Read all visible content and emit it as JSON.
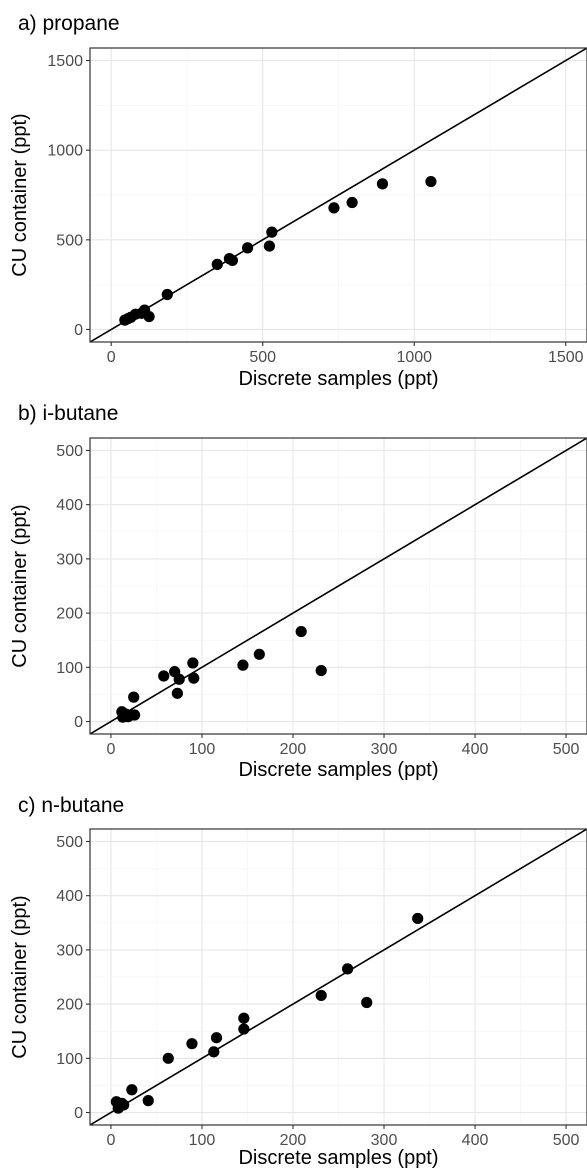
{
  "colors": {
    "point": "#000000",
    "line": "#000000",
    "grid": "#e6e6e6",
    "tick_text": "#4d4d4d"
  },
  "chart_data": [
    {
      "type": "scatter",
      "title": "a) propane",
      "xlabel": "Discrete samples (ppt)",
      "ylabel": "CU container (ppt)",
      "xlim": [
        -70,
        1570
      ],
      "ylim": [
        -70,
        1570
      ],
      "xticks": [
        0,
        500,
        1000,
        1500
      ],
      "yticks": [
        0,
        500,
        1000,
        1500
      ],
      "reference_line": "1:1",
      "grid": true,
      "points": [
        {
          "x": 45,
          "y": 52
        },
        {
          "x": 55,
          "y": 60
        },
        {
          "x": 65,
          "y": 68
        },
        {
          "x": 80,
          "y": 85
        },
        {
          "x": 100,
          "y": 90
        },
        {
          "x": 110,
          "y": 108
        },
        {
          "x": 125,
          "y": 72
        },
        {
          "x": 185,
          "y": 195
        },
        {
          "x": 350,
          "y": 363
        },
        {
          "x": 390,
          "y": 395
        },
        {
          "x": 400,
          "y": 385
        },
        {
          "x": 450,
          "y": 455
        },
        {
          "x": 522,
          "y": 465
        },
        {
          "x": 530,
          "y": 543
        },
        {
          "x": 735,
          "y": 678
        },
        {
          "x": 795,
          "y": 708
        },
        {
          "x": 895,
          "y": 812
        },
        {
          "x": 1055,
          "y": 825
        }
      ]
    },
    {
      "type": "scatter",
      "title": "b) i-butane",
      "xlabel": "Discrete samples (ppt)",
      "ylabel": "CU container (ppt)",
      "xlim": [
        -23,
        523
      ],
      "ylim": [
        -23,
        523
      ],
      "xticks": [
        0,
        100,
        200,
        300,
        400,
        500
      ],
      "yticks": [
        0,
        100,
        200,
        300,
        400,
        500
      ],
      "reference_line": "1:1",
      "grid": true,
      "points": [
        {
          "x": 12,
          "y": 18
        },
        {
          "x": 13,
          "y": 8
        },
        {
          "x": 16,
          "y": 14
        },
        {
          "x": 19,
          "y": 9
        },
        {
          "x": 22,
          "y": 12
        },
        {
          "x": 25,
          "y": 45
        },
        {
          "x": 26,
          "y": 12
        },
        {
          "x": 58,
          "y": 84
        },
        {
          "x": 70,
          "y": 92
        },
        {
          "x": 73,
          "y": 52
        },
        {
          "x": 75,
          "y": 78
        },
        {
          "x": 90,
          "y": 108
        },
        {
          "x": 91,
          "y": 80
        },
        {
          "x": 145,
          "y": 104
        },
        {
          "x": 163,
          "y": 124
        },
        {
          "x": 209,
          "y": 166
        },
        {
          "x": 231,
          "y": 94
        }
      ]
    },
    {
      "type": "scatter",
      "title": "c) n-butane",
      "xlabel": "Discrete samples (ppt)",
      "ylabel": "CU container (ppt)",
      "xlim": [
        -23,
        523
      ],
      "ylim": [
        -23,
        523
      ],
      "xticks": [
        0,
        100,
        200,
        300,
        400,
        500
      ],
      "yticks": [
        0,
        100,
        200,
        300,
        400,
        500
      ],
      "reference_line": "1:1",
      "grid": true,
      "points": [
        {
          "x": 6,
          "y": 20
        },
        {
          "x": 8,
          "y": 8
        },
        {
          "x": 10,
          "y": 12
        },
        {
          "x": 12,
          "y": 17
        },
        {
          "x": 14,
          "y": 14
        },
        {
          "x": 23,
          "y": 42
        },
        {
          "x": 41,
          "y": 22
        },
        {
          "x": 63,
          "y": 100
        },
        {
          "x": 89,
          "y": 127
        },
        {
          "x": 113,
          "y": 112
        },
        {
          "x": 116,
          "y": 138
        },
        {
          "x": 146,
          "y": 174
        },
        {
          "x": 146,
          "y": 154
        },
        {
          "x": 231,
          "y": 216
        },
        {
          "x": 260,
          "y": 265
        },
        {
          "x": 281,
          "y": 203
        },
        {
          "x": 337,
          "y": 358
        }
      ]
    }
  ]
}
